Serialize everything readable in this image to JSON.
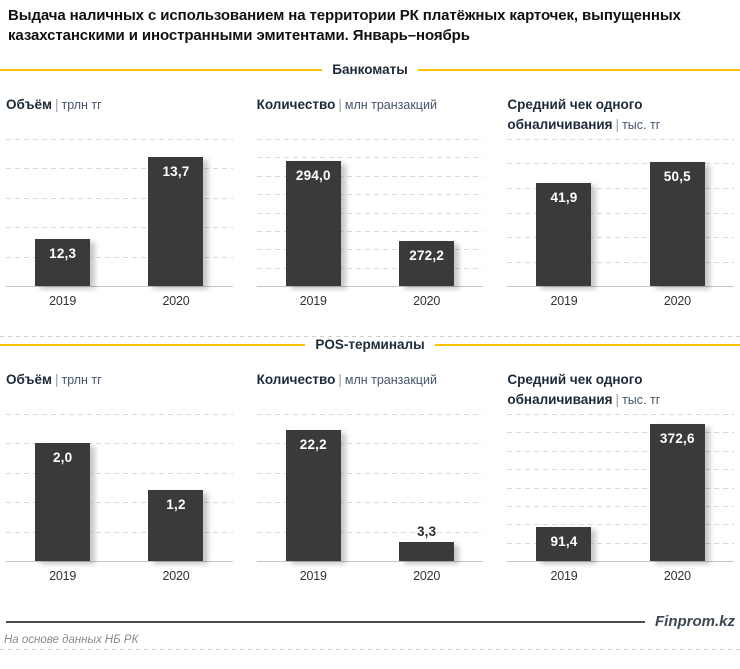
{
  "header": {
    "title_line1": "Выдача наличных с использованием на территории РК платёжных карточек, выпущенных",
    "title_line2": "казахстанскими и иностранными эмитентами. Январь–ноябрь"
  },
  "sections": [
    {
      "label": "Банкоматы"
    },
    {
      "label": "POS-терминалы"
    }
  ],
  "separator": "|",
  "footer": {
    "brand": "Finprom.kz",
    "source_note": "На основе данных НБ РК"
  },
  "colors": {
    "accent_yellow": "#FFC000",
    "bar": "#3A3A3A",
    "value_label": "#FFFFFF"
  },
  "chart_data": [
    {
      "type": "bar",
      "section": "Банкоматы",
      "title": "Объём",
      "unit": "трлн тг",
      "categories": [
        "2019",
        "2020"
      ],
      "values": [
        12.3,
        13.7
      ],
      "labels": [
        "12,3",
        "13,7"
      ],
      "ylim": [
        11.5,
        14
      ],
      "grid_step": 0.5,
      "grid": true,
      "legend": "none"
    },
    {
      "type": "bar",
      "section": "Банкоматы",
      "title": "Количество",
      "unit": "млн транзакций",
      "categories": [
        "2019",
        "2020"
      ],
      "values": [
        294.0,
        272.2
      ],
      "labels": [
        "294,0",
        "272,2"
      ],
      "ylim": [
        260,
        300
      ],
      "grid_step": 5,
      "grid": true,
      "legend": "none"
    },
    {
      "type": "bar",
      "section": "Банкоматы",
      "title": "Средний чек одного обналичивания",
      "unit": "тыс. тг",
      "categories": [
        "2019",
        "2020"
      ],
      "values": [
        41.9,
        50.5
      ],
      "labels": [
        "41,9",
        "50,5"
      ],
      "ylim": [
        0,
        60
      ],
      "grid_step": 10,
      "grid": true,
      "legend": "none"
    },
    {
      "type": "bar",
      "section": "POS-терминалы",
      "title": "Объём",
      "unit": "трлн тг",
      "categories": [
        "2019",
        "2020"
      ],
      "values": [
        2.0,
        1.2
      ],
      "labels": [
        "2,0",
        "1,2"
      ],
      "ylim": [
        0,
        2.5
      ],
      "grid_step": 0.5,
      "grid": true,
      "legend": "none"
    },
    {
      "type": "bar",
      "section": "POS-терминалы",
      "title": "Количество",
      "unit": "млн транзакций",
      "categories": [
        "2019",
        "2020"
      ],
      "values": [
        22.2,
        3.3
      ],
      "labels": [
        "22,2",
        "3,3"
      ],
      "ylim": [
        0,
        25
      ],
      "grid_step": 5,
      "grid": true,
      "legend": "none"
    },
    {
      "type": "bar",
      "section": "POS-терминалы",
      "title": "Средний чек одного обналичивания",
      "unit": "тыс. тг",
      "categories": [
        "2019",
        "2020"
      ],
      "values": [
        91.4,
        372.6
      ],
      "labels": [
        "91,4",
        "372,6"
      ],
      "ylim": [
        0,
        400
      ],
      "grid_step": 50,
      "grid": true,
      "legend": "none"
    }
  ]
}
